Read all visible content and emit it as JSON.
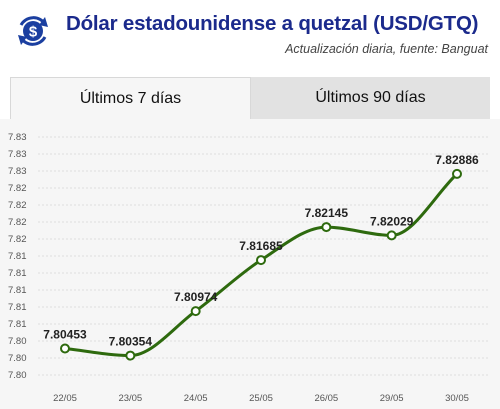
{
  "header": {
    "title": "Dólar estadounidense a quetzal (USD/GTQ)",
    "subtitle": "Actualización diaria, fuente: Banguat",
    "logo_icon": "dollar-exchange-icon"
  },
  "tabs": [
    {
      "label": "Últimos 7 días",
      "active": true
    },
    {
      "label": "Últimos 90 días",
      "active": false
    }
  ],
  "colors": {
    "title": "#1b2a8c",
    "logo": "#1b3fa0",
    "line": "#2e6a0e",
    "marker_fill": "#ffffff"
  },
  "chart_data": {
    "type": "line",
    "categories": [
      "22/05",
      "23/05",
      "24/05",
      "25/05",
      "26/05",
      "29/05",
      "30/05"
    ],
    "series": [
      {
        "values": [
          7.80453,
          7.80354,
          7.80974,
          7.81685,
          7.82145,
          7.82029,
          7.82886
        ]
      }
    ],
    "data_labels": [
      "7.80453",
      "7.80354",
      "7.80974",
      "7.81685",
      "7.82145",
      "7.82029",
      "7.82886"
    ],
    "y_ticks": [
      "7.80",
      "7.80",
      "7.80",
      "7.81",
      "7.81",
      "7.81",
      "7.81",
      "7.81",
      "7.82",
      "7.82",
      "7.82",
      "7.82",
      "7.83",
      "7.83",
      "7.83"
    ],
    "ylim": [
      7.8,
      7.834
    ],
    "grid": true,
    "smooth": true,
    "title": "",
    "xlabel": "",
    "ylabel": ""
  }
}
